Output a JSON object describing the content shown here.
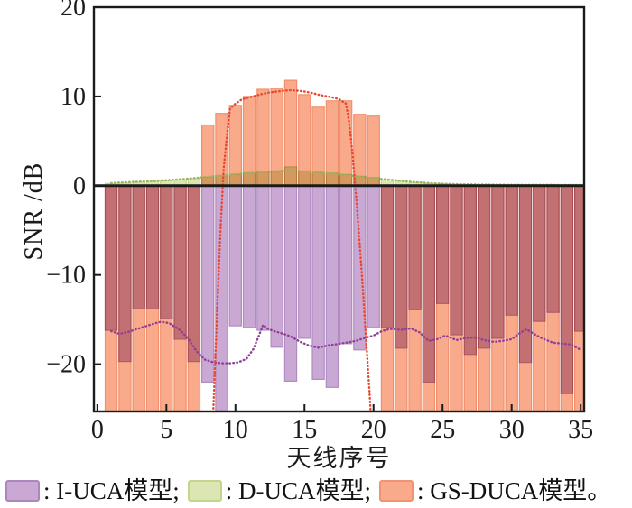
{
  "figure": {
    "type": "grouped overlapping bar chart with dotted fit lines",
    "background": "#ffffff",
    "axis_color": "#1b1b1b"
  },
  "y_axis": {
    "label": "SNR /dB",
    "ticks": [
      "20",
      "10",
      "0",
      "−10",
      "−20"
    ],
    "tick_values": [
      20,
      10,
      0,
      -10,
      -20
    ],
    "range_min": -25.3,
    "range_max": 20
  },
  "x_axis": {
    "label": "天线序号",
    "ticks": [
      "0",
      "5",
      "10",
      "15",
      "20",
      "25",
      "30",
      "35"
    ],
    "tick_values": [
      0,
      5,
      10,
      15,
      20,
      25,
      30,
      35
    ],
    "range_min": -0.25,
    "range_max": 35.25
  },
  "legend": {
    "items": [
      {
        "label": ": I-UCA模型;",
        "color": "#c9a8d3",
        "border": "#ad86c0"
      },
      {
        "label": ": D-UCA模型;",
        "color": "#dbe6b2",
        "border": "#c3d48c"
      },
      {
        "label": ": GS-DUCA模型。",
        "color": "#f8aa8a",
        "border": "#f19372"
      }
    ]
  },
  "chart_data": {
    "type": "bar",
    "title": "",
    "xlabel": "天线序号",
    "ylabel": "SNR /dB",
    "xlim": [
      -0.25,
      35.25
    ],
    "ylim": [
      -25.3,
      20
    ],
    "grid": false,
    "legend_position": "below",
    "categories": [
      1,
      2,
      3,
      4,
      5,
      6,
      7,
      8,
      9,
      10,
      11,
      12,
      13,
      14,
      15,
      16,
      17,
      18,
      19,
      20,
      21,
      22,
      23,
      24,
      25,
      26,
      27,
      28,
      29,
      30,
      31,
      32,
      33,
      34,
      35
    ],
    "bar_blend_note": "bars are translucent and multiply-blend: purple+orange overlap renders maroon #c37173, green+orange overlap renders tan #d69b62; values of -26 extend below the plot bottom (clipped at axis minimum)",
    "series": [
      {
        "name": "I-UCA模型",
        "color": "#c9a8d3",
        "edge": "#b18bc2",
        "values": [
          -16.2,
          -19.7,
          -13.8,
          -13.8,
          -14.9,
          -17.2,
          -19.7,
          -22.0,
          -26,
          -15.7,
          -15.9,
          -16.2,
          -18.1,
          -21.9,
          -17.1,
          -21.7,
          -22.6,
          -17.7,
          -18.4,
          -15.9,
          -15.9,
          -18.2,
          -13.9,
          -22.0,
          -13.2,
          -16.7,
          -18.9,
          -18.2,
          -17.1,
          -14.5,
          -19.8,
          -15.2,
          -14.2,
          -23.3,
          -16.3
        ]
      },
      {
        "name": "D-UCA模型",
        "color": "#dbe6b2",
        "edge": "#c3d48c",
        "values": [
          0.25,
          0.3,
          0.4,
          0.45,
          0.55,
          0.65,
          0.8,
          0.95,
          1.1,
          1.25,
          1.4,
          1.5,
          1.6,
          2.1,
          1.65,
          1.5,
          1.4,
          1.25,
          1.05,
          0.9,
          0.65,
          0.5,
          0.35,
          0.25,
          0.2,
          0.15,
          0.12,
          0.1,
          0.1,
          0.1,
          0.1,
          0.1,
          0.1,
          0.1,
          0.1
        ]
      },
      {
        "name": "GS-DUCA模型",
        "color": "#f8aa8a",
        "edge": "#f08f6d",
        "values": [
          -26,
          -26,
          -26,
          -26,
          -26,
          -26,
          -26,
          6.8,
          8.1,
          9.0,
          10.0,
          10.8,
          10.9,
          11.8,
          10.2,
          8.8,
          9.5,
          9.5,
          8.0,
          7.8,
          -26,
          -26,
          -26,
          -26,
          -26,
          -26,
          -26,
          -26,
          -26,
          -26,
          -26,
          -26,
          -26,
          -26,
          -26
        ]
      }
    ],
    "fit_lines": [
      {
        "name": "I-UCA dotted fit line",
        "color": "#8f3f97",
        "points": [
          [
            1,
            -16.3
          ],
          [
            1.6,
            -16.6
          ],
          [
            2.2,
            -16.4
          ],
          [
            3,
            -16.0
          ],
          [
            4,
            -15.5
          ],
          [
            4.6,
            -15.25
          ],
          [
            5.2,
            -15.4
          ],
          [
            6,
            -16.2
          ],
          [
            6.6,
            -17.2
          ],
          [
            7.2,
            -18.6
          ],
          [
            7.8,
            -19.5
          ],
          [
            8.4,
            -19.8
          ],
          [
            9,
            -19.9
          ],
          [
            9.6,
            -19.9
          ],
          [
            10.2,
            -19.8
          ],
          [
            10.8,
            -19.4
          ],
          [
            11.3,
            -18.3
          ],
          [
            11.7,
            -16.8
          ],
          [
            12,
            -15.6
          ],
          [
            12.3,
            -16.0
          ],
          [
            12.8,
            -16.3
          ],
          [
            13.5,
            -16.6
          ],
          [
            14,
            -16.9
          ],
          [
            14.7,
            -17.5
          ],
          [
            15.3,
            -17.9
          ],
          [
            16,
            -18.15
          ],
          [
            16.7,
            -17.9
          ],
          [
            17.4,
            -17.75
          ],
          [
            18,
            -17.6
          ],
          [
            18.7,
            -17.4
          ],
          [
            19.3,
            -17.1
          ],
          [
            20,
            -16.8
          ],
          [
            20.6,
            -16.3
          ],
          [
            21.2,
            -16.05
          ],
          [
            22,
            -16.15
          ],
          [
            22.7,
            -16.0
          ],
          [
            23.3,
            -16.4
          ],
          [
            24,
            -17.4
          ],
          [
            24.6,
            -17.2
          ],
          [
            25.2,
            -16.8
          ],
          [
            26,
            -17.3
          ],
          [
            26.6,
            -17.1
          ],
          [
            27.3,
            -17.0
          ],
          [
            28,
            -17.3
          ],
          [
            28.7,
            -17.5
          ],
          [
            29.3,
            -17.4
          ],
          [
            30,
            -17.2
          ],
          [
            30.7,
            -16.4
          ],
          [
            31.1,
            -16.1
          ],
          [
            31.6,
            -16.6
          ],
          [
            32.2,
            -17.1
          ],
          [
            33,
            -17.6
          ],
          [
            33.7,
            -17.7
          ],
          [
            34.3,
            -17.8
          ],
          [
            35,
            -18.4
          ]
        ]
      },
      {
        "name": "D-UCA dotted fit line",
        "color": "#9cb35c",
        "points": [
          [
            1,
            0.3
          ],
          [
            2,
            0.38
          ],
          [
            3,
            0.45
          ],
          [
            4,
            0.52
          ],
          [
            5,
            0.62
          ],
          [
            6,
            0.72
          ],
          [
            7,
            0.85
          ],
          [
            8,
            1.0
          ],
          [
            9,
            1.15
          ],
          [
            10,
            1.3
          ],
          [
            11,
            1.45
          ],
          [
            12,
            1.55
          ],
          [
            13,
            1.65
          ],
          [
            14,
            1.7
          ],
          [
            15,
            1.6
          ],
          [
            16,
            1.5
          ],
          [
            17,
            1.35
          ],
          [
            18,
            1.2
          ],
          [
            19,
            1.0
          ],
          [
            20,
            0.85
          ],
          [
            21,
            0.7
          ],
          [
            22,
            0.55
          ],
          [
            23,
            0.4
          ],
          [
            24,
            0.3
          ],
          [
            25,
            0.22
          ],
          [
            26,
            0.18
          ],
          [
            27,
            0.15
          ],
          [
            28,
            0.13
          ],
          [
            29,
            0.12
          ],
          [
            30,
            0.1
          ],
          [
            31,
            0.1
          ],
          [
            32,
            0.1
          ],
          [
            33,
            0.09
          ],
          [
            34,
            0.09
          ],
          [
            35,
            0.08
          ]
        ]
      },
      {
        "name": "GS-DUCA dotted fit line",
        "color": "#e8472f",
        "points": [
          [
            8.35,
            -27
          ],
          [
            8.45,
            -23
          ],
          [
            8.6,
            -17
          ],
          [
            8.75,
            -11
          ],
          [
            8.95,
            -4
          ],
          [
            9.15,
            2
          ],
          [
            9.4,
            5.8
          ],
          [
            9.6,
            8.6
          ],
          [
            10,
            9.2
          ],
          [
            10.5,
            9.7
          ],
          [
            11,
            9.9
          ],
          [
            11.5,
            10.1
          ],
          [
            12,
            10.3
          ],
          [
            12.5,
            10.45
          ],
          [
            13,
            10.55
          ],
          [
            13.5,
            10.65
          ],
          [
            14,
            10.7
          ],
          [
            14.5,
            10.65
          ],
          [
            15,
            10.55
          ],
          [
            15.5,
            10.4
          ],
          [
            16,
            10.2
          ],
          [
            16.5,
            10.05
          ],
          [
            17,
            9.9
          ],
          [
            17.5,
            9.7
          ],
          [
            18,
            9.2
          ],
          [
            18.2,
            7.5
          ],
          [
            18.45,
            4
          ],
          [
            18.7,
            -0.5
          ],
          [
            18.95,
            -5.5
          ],
          [
            19.2,
            -11
          ],
          [
            19.45,
            -17
          ],
          [
            19.7,
            -23
          ],
          [
            19.85,
            -27
          ]
        ]
      }
    ]
  }
}
